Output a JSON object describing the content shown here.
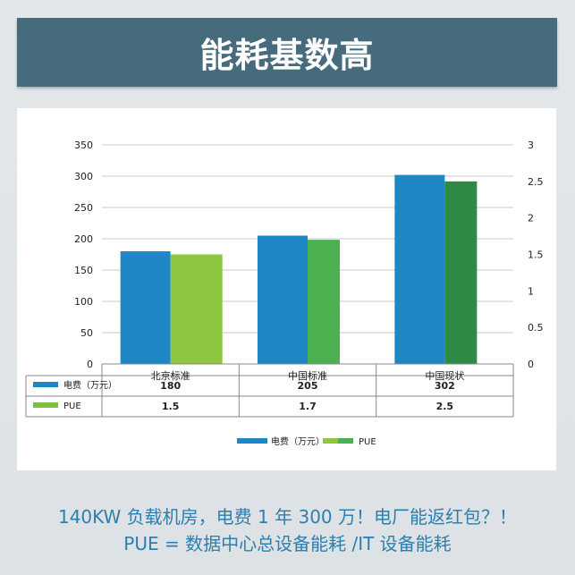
{
  "banner": {
    "title": "能耗基数高"
  },
  "chart_data": {
    "type": "bar",
    "categories": [
      "北京标准",
      "中国标准",
      "中国现状"
    ],
    "series": [
      {
        "name": "电费（万元）",
        "axis": "left",
        "values": [
          180,
          205,
          302
        ],
        "color": "#1e88c7",
        "table_values": [
          "180",
          "205",
          "302"
        ]
      },
      {
        "name": "PUE",
        "axis": "right",
        "values": [
          1.5,
          1.7,
          2.5
        ],
        "color": "#7cc043",
        "category_colors": [
          "#8dc63f",
          "#4caf50",
          "#2e8b45"
        ],
        "table_values": [
          "1.5",
          "1.7",
          "2.5"
        ]
      }
    ],
    "y_left": {
      "ticks": [
        "0",
        "50",
        "100",
        "150",
        "200",
        "250",
        "300",
        "350"
      ],
      "ylim": [
        0,
        350
      ]
    },
    "y_right": {
      "ticks": [
        "0",
        "0.5",
        "1",
        "1.5",
        "2",
        "2.5",
        "3"
      ],
      "ylim": [
        0,
        3
      ]
    },
    "grid": true,
    "legend": "bottom",
    "data_table": true
  },
  "caption": {
    "line1": "140KW 负载机房，电费 1 年 300 万！电厂能返红包？！",
    "line2": "PUE = 数据中心总设备能耗 /IT 设备能耗"
  }
}
